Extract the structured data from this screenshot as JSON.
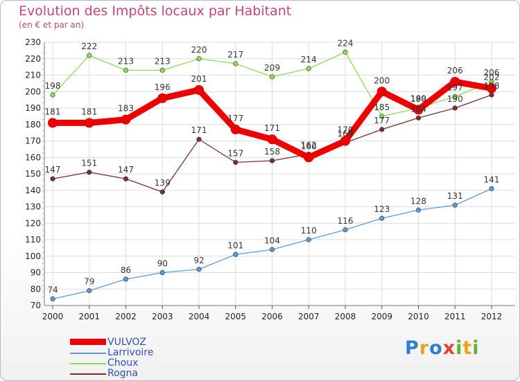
{
  "title": "Evolution des Impôts locaux par Habitant",
  "subtitle": "(en € et par an)",
  "chart_data": {
    "type": "line",
    "title": "Evolution des Impôts locaux par Habitant",
    "subtitle": "(en € et par an)",
    "xlabel": "",
    "ylabel": "",
    "x": [
      "2000",
      "2001",
      "2002",
      "2003",
      "2004",
      "2005",
      "2006",
      "2007",
      "2008",
      "2009",
      "2010",
      "2011",
      "2012"
    ],
    "ylim": [
      70,
      230
    ],
    "yticks": [
      70,
      80,
      90,
      100,
      110,
      120,
      130,
      140,
      150,
      160,
      170,
      180,
      190,
      200,
      210,
      220,
      230
    ],
    "grid": true,
    "legend_position": "bottom-left",
    "series": [
      {
        "name": "VULVOZ",
        "color": "#ee0000",
        "values": [
          181,
          181,
          183,
          196,
          201,
          177,
          171,
          160,
          170,
          200,
          189,
          206,
          202
        ]
      },
      {
        "name": "Larrivoire",
        "color": "#5b9bd5",
        "values": [
          74,
          79,
          86,
          90,
          92,
          101,
          104,
          110,
          116,
          123,
          128,
          131,
          141
        ]
      },
      {
        "name": "Choux",
        "color": "#8cdd55",
        "values": [
          198,
          222,
          213,
          213,
          220,
          217,
          209,
          214,
          224,
          185,
          190,
          197,
          206
        ]
      },
      {
        "name": "Rogna",
        "color": "#7a2e2e",
        "values": [
          147,
          151,
          147,
          139,
          171,
          157,
          158,
          162,
          169,
          177,
          184,
          190,
          198
        ]
      }
    ]
  },
  "logo": {
    "text": "Proxiti",
    "letters": [
      "P",
      "r",
      "o",
      "x",
      "i",
      "t",
      "i"
    ]
  }
}
